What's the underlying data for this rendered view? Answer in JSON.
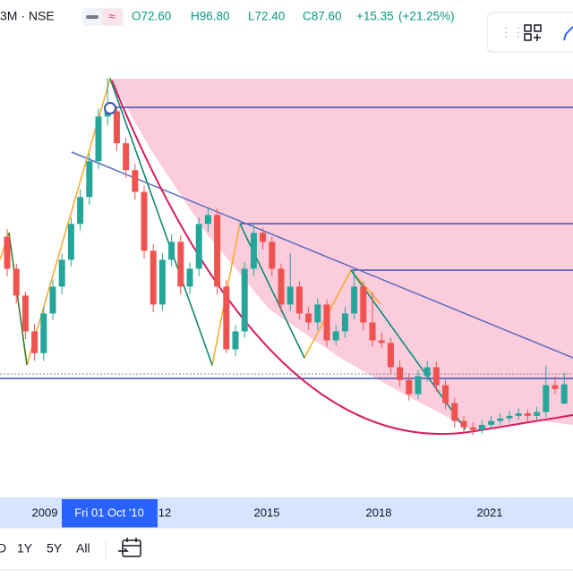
{
  "header": {
    "symbol": "3M · NSE",
    "open": "O72.60",
    "high": "H96.80",
    "low": "L72.40",
    "close": "C87.60",
    "change": "+15.35",
    "change_pct": "(+21.25%)"
  },
  "x_axis": {
    "labels": [
      "2009",
      "12",
      "2015",
      "2018",
      "2021"
    ],
    "crosshair_label": "Fri 01 Oct '10"
  },
  "ranges": [
    "D",
    "1Y",
    "5Y",
    "All"
  ],
  "chart_data": {
    "type": "candlestick",
    "ylim": [
      0,
      360
    ],
    "up_color": "#26a69a",
    "down_color": "#ef5350",
    "candles": [
      [
        203,
        209,
        172,
        178
      ],
      [
        178,
        182,
        151,
        157
      ],
      [
        157,
        160,
        123,
        129
      ],
      [
        129,
        135,
        106,
        112
      ],
      [
        112,
        148,
        106,
        143
      ],
      [
        143,
        169,
        138,
        164
      ],
      [
        164,
        190,
        158,
        185
      ],
      [
        185,
        218,
        180,
        213
      ],
      [
        213,
        240,
        208,
        234
      ],
      [
        234,
        268,
        228,
        262
      ],
      [
        262,
        303,
        256,
        297
      ],
      [
        297,
        327,
        290,
        301
      ],
      [
        301,
        305,
        270,
        276
      ],
      [
        276,
        280,
        249,
        255
      ],
      [
        255,
        260,
        232,
        238
      ],
      [
        238,
        243,
        186,
        192
      ],
      [
        192,
        197,
        144,
        150
      ],
      [
        150,
        190,
        145,
        185
      ],
      [
        185,
        205,
        180,
        199
      ],
      [
        199,
        204,
        158,
        164
      ],
      [
        164,
        183,
        158,
        178
      ],
      [
        178,
        218,
        172,
        213
      ],
      [
        213,
        226,
        207,
        220
      ],
      [
        220,
        225,
        158,
        164
      ],
      [
        164,
        169,
        112,
        115
      ],
      [
        115,
        134,
        110,
        129
      ],
      [
        129,
        183,
        124,
        178
      ],
      [
        178,
        212,
        172,
        206
      ],
      [
        206,
        210,
        193,
        199
      ],
      [
        199,
        203,
        172,
        178
      ],
      [
        178,
        182,
        144,
        150
      ],
      [
        150,
        190,
        145,
        164
      ],
      [
        164,
        168,
        138,
        143
      ],
      [
        143,
        148,
        130,
        136
      ],
      [
        136,
        155,
        130,
        150
      ],
      [
        150,
        154,
        117,
        122
      ],
      [
        122,
        134,
        118,
        129
      ],
      [
        129,
        148,
        124,
        143
      ],
      [
        143,
        177,
        138,
        164
      ],
      [
        164,
        168,
        130,
        136
      ],
      [
        136,
        160,
        117,
        122
      ],
      [
        122,
        128,
        116,
        120
      ],
      [
        120,
        124,
        96,
        101
      ],
      [
        101,
        106,
        86,
        91
      ],
      [
        91,
        96,
        75,
        80
      ],
      [
        80,
        99,
        76,
        94
      ],
      [
        94,
        106,
        90,
        101
      ],
      [
        101,
        105,
        82,
        87
      ],
      [
        87,
        91,
        68,
        73
      ],
      [
        73,
        77,
        54,
        59
      ],
      [
        59,
        63,
        50,
        54
      ],
      [
        54,
        58,
        48,
        52
      ],
      [
        52,
        60,
        49,
        56
      ],
      [
        56,
        63,
        53,
        59
      ],
      [
        59,
        65,
        56,
        61
      ],
      [
        61,
        67,
        58,
        63
      ],
      [
        63,
        69,
        60,
        65
      ],
      [
        65,
        68,
        58,
        63
      ],
      [
        63,
        70,
        60,
        66
      ],
      [
        66,
        102,
        62,
        87
      ],
      [
        87,
        94,
        80,
        84
      ],
      [
        72.6,
        96.8,
        72.4,
        87.6
      ]
    ]
  }
}
